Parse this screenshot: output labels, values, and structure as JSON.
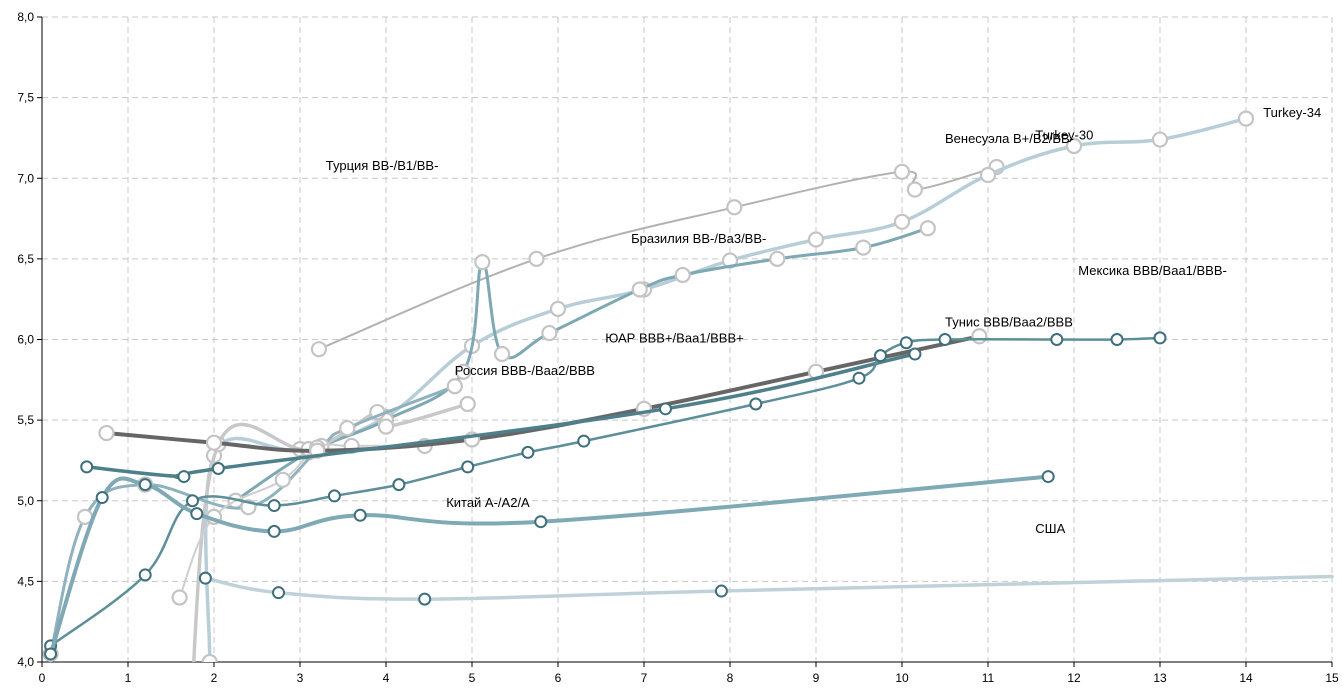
{
  "chart_data": {
    "type": "line",
    "title": "",
    "xlabel": "",
    "ylabel": "",
    "xlim": [
      0,
      15
    ],
    "ylim": [
      4.0,
      8.0
    ],
    "x_ticks": [
      "0",
      "1",
      "2",
      "3",
      "4",
      "5",
      "6",
      "7",
      "8",
      "9",
      "10",
      "11",
      "12",
      "13",
      "14",
      "15"
    ],
    "y_ticks": [
      "4,0",
      "4,5",
      "5,0",
      "5,5",
      "6,0",
      "6,5",
      "7,0",
      "7,5",
      "8,0"
    ],
    "grid": true,
    "annotations": [
      {
        "text": "Турция BB-/B1/BB-",
        "x": 3.3,
        "y": 7.05
      },
      {
        "text": "Венесуэла B+/B2/BB-",
        "x": 10.5,
        "y": 7.22
      },
      {
        "text": "Turkey-30",
        "x": 11.55,
        "y": 7.24
      },
      {
        "text": "Turkey-34",
        "x": 14.2,
        "y": 7.38
      },
      {
        "text": "Бразилия BB-/Ba3/BB-",
        "x": 6.85,
        "y": 6.6
      },
      {
        "text": "Мексика BBB/Baa1/BBB-",
        "x": 12.05,
        "y": 6.4
      },
      {
        "text": "Тунис BBB/Baa2/BBB",
        "x": 10.5,
        "y": 6.08
      },
      {
        "text": "ЮАР BBB+/Baa1/BBB+",
        "x": 6.55,
        "y": 5.98
      },
      {
        "text": "Россия BBB-/Baa2/BBB",
        "x": 4.8,
        "y": 5.78
      },
      {
        "text": "Китай A-/A2/A",
        "x": 4.7,
        "y": 4.96
      },
      {
        "text": "США",
        "x": 11.55,
        "y": 4.8
      }
    ],
    "series": [
      {
        "color": "#b2b2b2",
        "width": 2,
        "markers": "light",
        "points": [
          [
            3.22,
            5.94
          ],
          [
            5.75,
            6.5
          ],
          [
            8.05,
            6.82
          ],
          [
            10.0,
            7.04
          ],
          [
            10.15,
            6.93
          ],
          [
            11.1,
            7.07
          ]
        ]
      },
      {
        "color": "#b7ced8",
        "width": 3.5,
        "markers": "light",
        "points": [
          [
            1.95,
            4.0
          ],
          [
            2.0,
            5.28
          ],
          [
            3.0,
            5.32
          ],
          [
            4.0,
            5.52
          ],
          [
            5.0,
            5.96
          ],
          [
            6.0,
            6.19
          ],
          [
            7.0,
            6.31
          ],
          [
            8.0,
            6.49
          ],
          [
            9.0,
            6.62
          ],
          [
            10.0,
            6.73
          ],
          [
            11.0,
            7.02
          ],
          [
            12.0,
            7.2
          ],
          [
            13.0,
            7.24
          ],
          [
            14.0,
            7.37
          ]
        ]
      },
      {
        "color": "#7da8b4",
        "width": 3,
        "markers": "light",
        "points": [
          [
            2.25,
            5.0
          ],
          [
            3.1,
            5.3
          ],
          [
            4.0,
            5.5
          ],
          [
            4.9,
            5.8
          ],
          [
            5.12,
            6.48
          ],
          [
            5.35,
            5.91
          ],
          [
            5.9,
            6.04
          ],
          [
            6.95,
            6.31
          ],
          [
            7.45,
            6.4
          ],
          [
            8.55,
            6.5
          ],
          [
            9.55,
            6.57
          ],
          [
            10.3,
            6.69
          ]
        ]
      },
      {
        "color": "#c8c8c8",
        "width": 3.5,
        "markers": "light",
        "points": [
          [
            1.72,
            3.6
          ],
          [
            2.05,
            5.35
          ],
          [
            3.1,
            5.32
          ],
          [
            3.9,
            5.55
          ],
          [
            4.0,
            5.46
          ],
          [
            4.95,
            5.6
          ]
        ]
      },
      {
        "color": "#8fb2be",
        "width": 3,
        "markers": "light",
        "points": [
          [
            0.1,
            4.05
          ],
          [
            0.5,
            4.9
          ],
          [
            1.2,
            5.1
          ],
          [
            2.4,
            4.96
          ],
          [
            3.25,
            5.34
          ],
          [
            3.55,
            5.45
          ],
          [
            4.8,
            5.71
          ]
        ]
      },
      {
        "color": "#cfcfcf",
        "width": 2,
        "markers": "light",
        "points": [
          [
            1.6,
            4.4
          ],
          [
            2.0,
            4.9
          ],
          [
            2.8,
            5.13
          ],
          [
            3.2,
            5.33
          ],
          [
            3.6,
            5.34
          ],
          [
            4.45,
            5.34
          ]
        ]
      },
      {
        "color": "#666666",
        "width": 4,
        "markers": "light",
        "points": [
          [
            0.75,
            5.42
          ],
          [
            2.0,
            5.36
          ],
          [
            3.2,
            5.31
          ],
          [
            5.0,
            5.38
          ],
          [
            7.0,
            5.57
          ],
          [
            9.0,
            5.8
          ],
          [
            10.9,
            6.02
          ]
        ]
      },
      {
        "color": "#4f7f8b",
        "width": 3.5,
        "markers": "dark",
        "points": [
          [
            0.52,
            5.21
          ],
          [
            1.65,
            5.15
          ],
          [
            2.05,
            5.2
          ],
          [
            7.25,
            5.57
          ],
          [
            10.15,
            5.91
          ]
        ]
      },
      {
        "color": "#5d8f9a",
        "width": 2.5,
        "markers": "dark",
        "points": [
          [
            0.1,
            4.1
          ],
          [
            1.2,
            4.54
          ],
          [
            1.75,
            5.0
          ],
          [
            2.7,
            4.97
          ],
          [
            3.4,
            5.03
          ],
          [
            4.15,
            5.1
          ],
          [
            4.95,
            5.21
          ],
          [
            5.65,
            5.3
          ],
          [
            6.3,
            5.37
          ],
          [
            8.3,
            5.6
          ],
          [
            9.5,
            5.76
          ],
          [
            9.75,
            5.9
          ],
          [
            10.05,
            5.98
          ],
          [
            10.5,
            6.0
          ],
          [
            11.8,
            6.0
          ],
          [
            12.5,
            6.0
          ],
          [
            13.0,
            6.01
          ]
        ]
      },
      {
        "color": "#7fa9b5",
        "width": 4,
        "markers": "dark",
        "points": [
          [
            0.1,
            4.05
          ],
          [
            0.7,
            5.02
          ],
          [
            1.2,
            5.1
          ],
          [
            1.8,
            4.92
          ],
          [
            2.7,
            4.81
          ],
          [
            3.7,
            4.91
          ],
          [
            5.8,
            4.87
          ],
          [
            11.7,
            5.15
          ]
        ]
      },
      {
        "color": "#bfd2d9",
        "width": 3.5,
        "markers": "dark",
        "points": [
          [
            1.9,
            4.52
          ],
          [
            2.75,
            4.43
          ],
          [
            4.45,
            4.39
          ],
          [
            7.9,
            4.44
          ],
          [
            15.0,
            4.53
          ]
        ]
      }
    ]
  }
}
